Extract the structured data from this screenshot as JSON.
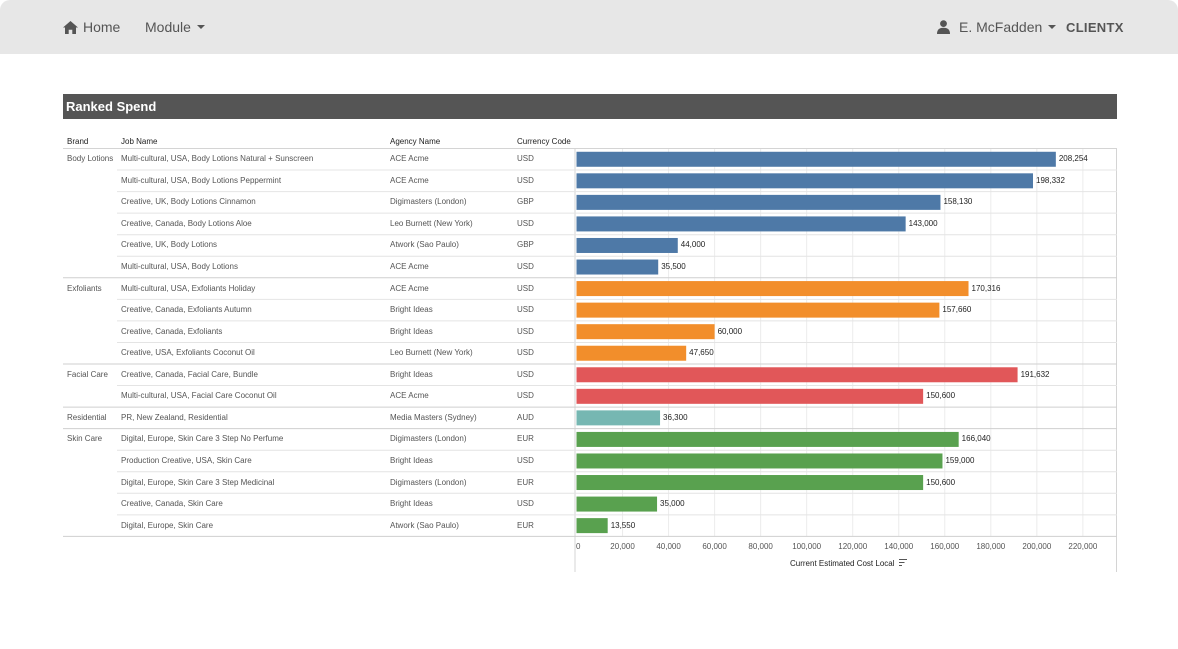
{
  "nav": {
    "home_label": "Home",
    "module_label": "Module",
    "user_label": "E. McFadden",
    "brand": "CLIENTX"
  },
  "panel": {
    "title": "Ranked Spend"
  },
  "table": {
    "headers": {
      "brand": "Brand",
      "job": "Job Name",
      "agency": "Agency Name",
      "currency": "Currency Code"
    }
  },
  "colors": {
    "Body Lotions": "#4e79a7",
    "Exfoliants": "#f28e2b",
    "Facial Care": "#e15759",
    "Residential": "#76b7b2",
    "Skin Care": "#59a14f"
  },
  "chart_data": {
    "type": "bar",
    "orientation": "horizontal",
    "xlabel": "Current Estimated Cost Local",
    "xlim": [
      0,
      230000
    ],
    "ticks": [
      0,
      20000,
      40000,
      60000,
      80000,
      100000,
      120000,
      140000,
      160000,
      180000,
      200000,
      220000
    ],
    "tick_labels": [
      "0",
      "20,000",
      "40,000",
      "60,000",
      "80,000",
      "100,000",
      "120,000",
      "140,000",
      "160,000",
      "180,000",
      "200,000",
      "220,000"
    ],
    "rows": [
      {
        "brand": "Body Lotions",
        "job": "Multi-cultural, USA, Body Lotions Natural + Sunscreen",
        "agency": "ACE Acme",
        "currency": "USD",
        "value": 208254,
        "label": "208,254"
      },
      {
        "brand": "Body Lotions",
        "job": "Multi-cultural, USA, Body Lotions Peppermint",
        "agency": "ACE Acme",
        "currency": "USD",
        "value": 198332,
        "label": "198,332"
      },
      {
        "brand": "Body Lotions",
        "job": "Creative, UK, Body Lotions Cinnamon",
        "agency": "Digimasters (London)",
        "currency": "GBP",
        "value": 158130,
        "label": "158,130"
      },
      {
        "brand": "Body Lotions",
        "job": "Creative, Canada, Body Lotions Aloe",
        "agency": "Leo Burnett (New York)",
        "currency": "USD",
        "value": 143000,
        "label": "143,000"
      },
      {
        "brand": "Body Lotions",
        "job": "Creative, UK, Body Lotions",
        "agency": "Atwork (Sao Paulo)",
        "currency": "GBP",
        "value": 44000,
        "label": "44,000"
      },
      {
        "brand": "Body Lotions",
        "job": "Multi-cultural, USA, Body Lotions",
        "agency": "ACE Acme",
        "currency": "USD",
        "value": 35500,
        "label": "35,500"
      },
      {
        "brand": "Exfoliants",
        "job": "Multi-cultural, USA, Exfoliants Holiday",
        "agency": "ACE Acme",
        "currency": "USD",
        "value": 170316,
        "label": "170,316"
      },
      {
        "brand": "Exfoliants",
        "job": "Creative, Canada, Exfoliants Autumn",
        "agency": "Bright Ideas",
        "currency": "USD",
        "value": 157660,
        "label": "157,660"
      },
      {
        "brand": "Exfoliants",
        "job": "Creative, Canada, Exfoliants",
        "agency": "Bright Ideas",
        "currency": "USD",
        "value": 60000,
        "label": "60,000"
      },
      {
        "brand": "Exfoliants",
        "job": "Creative, USA, Exfoliants Coconut Oil",
        "agency": "Leo Burnett (New York)",
        "currency": "USD",
        "value": 47650,
        "label": "47,650"
      },
      {
        "brand": "Facial Care",
        "job": "Creative, Canada, Facial Care, Bundle",
        "agency": "Bright Ideas",
        "currency": "USD",
        "value": 191632,
        "label": "191,632"
      },
      {
        "brand": "Facial Care",
        "job": "Multi-cultural, USA, Facial Care Coconut Oil",
        "agency": "ACE Acme",
        "currency": "USD",
        "value": 150600,
        "label": "150,600"
      },
      {
        "brand": "Residential",
        "job": "PR, New Zealand, Residential",
        "agency": "Media Masters (Sydney)",
        "currency": "AUD",
        "value": 36300,
        "label": "36,300"
      },
      {
        "brand": "Skin Care",
        "job": "Digital, Europe, Skin Care 3 Step No Perfume",
        "agency": "Digimasters (London)",
        "currency": "EUR",
        "value": 166040,
        "label": "166,040"
      },
      {
        "brand": "Skin Care",
        "job": "Production Creative, USA, Skin Care",
        "agency": "Bright Ideas",
        "currency": "USD",
        "value": 159000,
        "label": "159,000"
      },
      {
        "brand": "Skin Care",
        "job": "Digital, Europe, Skin Care 3 Step Medicinal",
        "agency": "Digimasters (London)",
        "currency": "EUR",
        "value": 150600,
        "label": "150,600"
      },
      {
        "brand": "Skin Care",
        "job": "Creative, Canada, Skin Care",
        "agency": "Bright Ideas",
        "currency": "USD",
        "value": 35000,
        "label": "35,000"
      },
      {
        "brand": "Skin Care",
        "job": "Digital, Europe, Skin Care",
        "agency": "Atwork (Sao Paulo)",
        "currency": "EUR",
        "value": 13550,
        "label": "13,550"
      }
    ]
  }
}
